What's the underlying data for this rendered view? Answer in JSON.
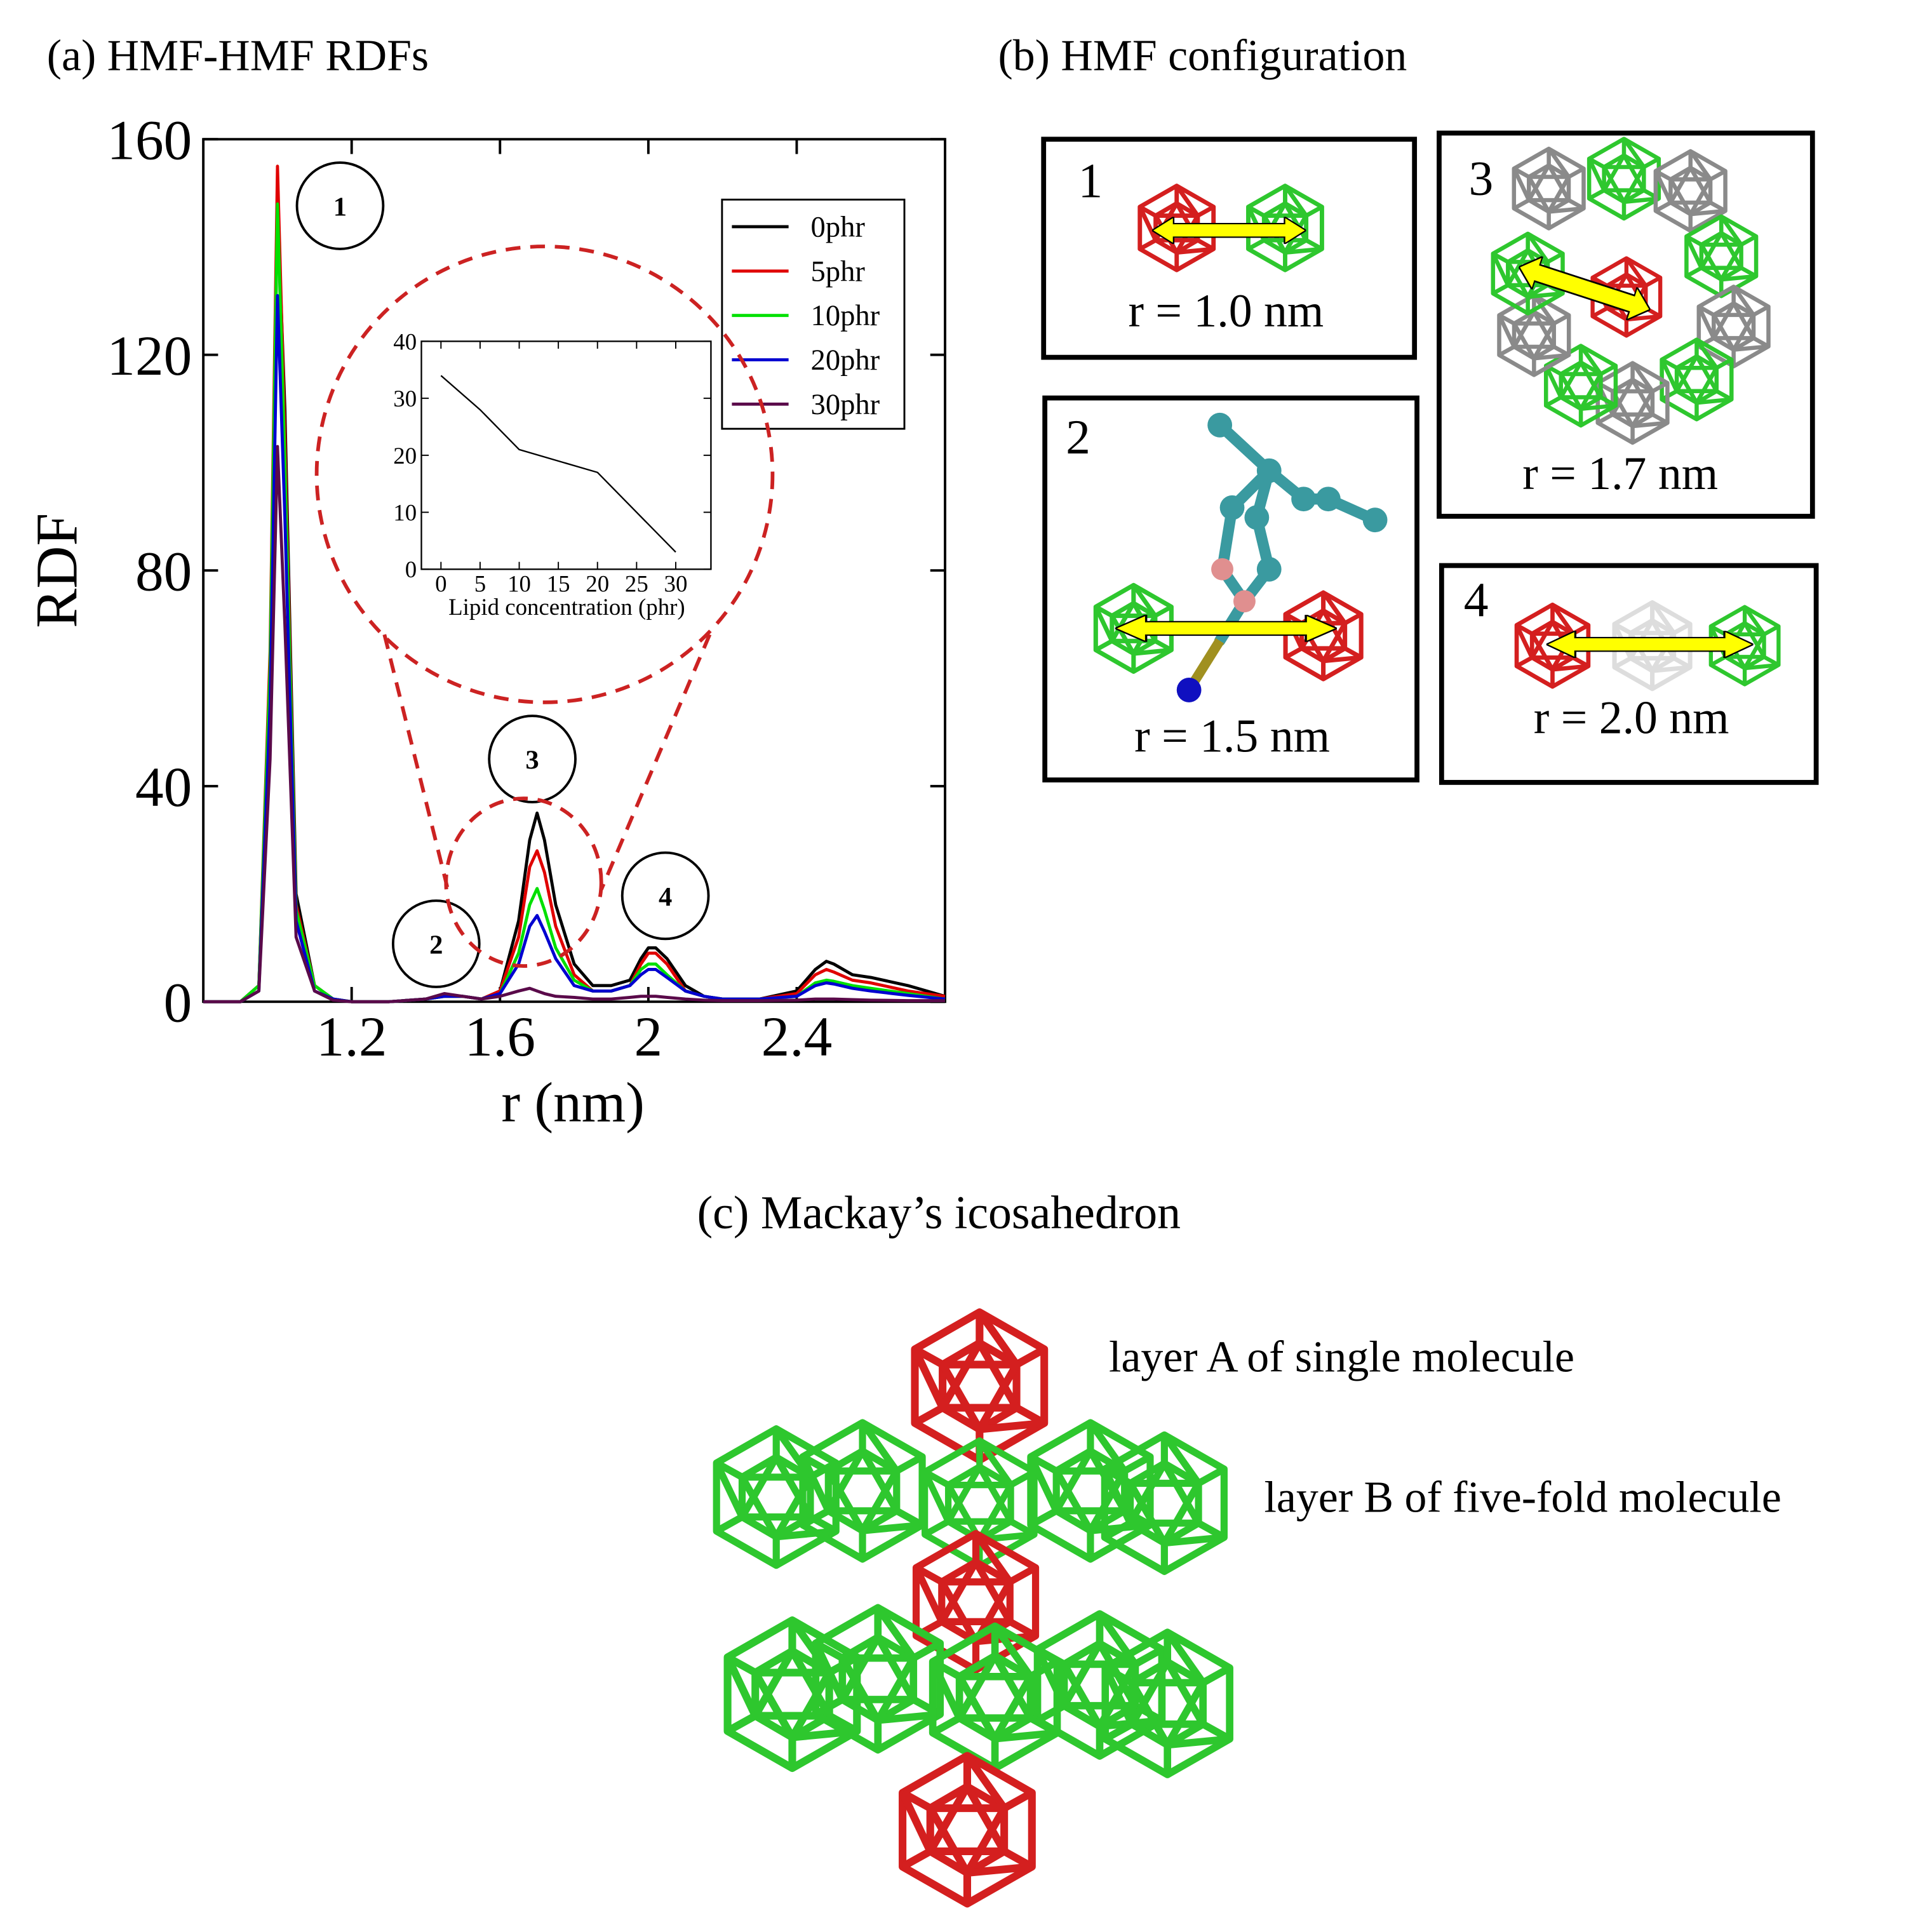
{
  "chart_data": [
    {
      "type": "line",
      "title": "(a) HMF-HMF RDFs",
      "xlabel": "r (nm)",
      "ylabel": "RDF",
      "xlim": [
        0.8,
        2.8
      ],
      "ylim": [
        0,
        160
      ],
      "xticks": [
        1.2,
        1.6,
        2,
        2.4
      ],
      "yticks": [
        0,
        40,
        80,
        120,
        160
      ],
      "x": [
        0.8,
        0.9,
        0.95,
        0.98,
        1.0,
        1.02,
        1.05,
        1.1,
        1.15,
        1.2,
        1.3,
        1.4,
        1.45,
        1.5,
        1.55,
        1.6,
        1.65,
        1.68,
        1.7,
        1.72,
        1.75,
        1.8,
        1.85,
        1.9,
        1.95,
        1.98,
        2.0,
        2.02,
        2.05,
        2.1,
        2.15,
        2.2,
        2.3,
        2.4,
        2.45,
        2.48,
        2.5,
        2.55,
        2.6,
        2.7,
        2.8
      ],
      "series": [
        {
          "name": "0phr",
          "color": "#000000",
          "values": [
            0,
            0,
            3,
            60,
            148,
            110,
            20,
            3,
            0.5,
            0,
            0,
            0.5,
            1,
            1,
            0.5,
            2,
            15,
            30,
            35,
            30,
            18,
            7,
            3,
            3,
            4,
            8,
            10,
            10,
            8,
            3,
            1,
            0.5,
            0.5,
            2,
            6,
            7.5,
            7,
            5,
            4.5,
            3,
            1
          ]
        },
        {
          "name": "5phr",
          "color": "#e00000",
          "values": [
            0,
            0,
            3,
            65,
            155,
            105,
            18,
            3,
            0.5,
            0,
            0,
            0.5,
            1,
            1,
            0.5,
            2,
            12,
            25,
            28,
            24,
            14,
            5,
            2,
            2,
            3,
            7,
            9,
            9,
            7,
            2,
            1,
            0.5,
            0.5,
            1.5,
            5,
            6,
            5.5,
            4,
            3.5,
            2,
            1
          ]
        },
        {
          "name": "10phr",
          "color": "#00e000",
          "values": [
            0,
            0,
            3,
            62,
            148,
            100,
            17,
            3,
            0.5,
            0,
            0,
            0.5,
            1,
            1,
            0.5,
            1.5,
            9,
            18,
            21,
            17,
            10,
            4,
            2,
            2,
            3,
            6,
            7,
            7,
            5,
            2,
            1,
            0.5,
            0.5,
            1,
            3.5,
            4,
            3.8,
            3,
            2.5,
            1.5,
            0.5
          ]
        },
        {
          "name": "20phr",
          "color": "#0000d0",
          "values": [
            0,
            0,
            2,
            55,
            131,
            90,
            15,
            2,
            0.5,
            0,
            0,
            0.5,
            1,
            1,
            0.5,
            1.5,
            7,
            14,
            16,
            13,
            8,
            3,
            2,
            2,
            3,
            5,
            6,
            6,
            4.5,
            2,
            1,
            0.5,
            0.5,
            1,
            3,
            3.5,
            3.3,
            2.5,
            2,
            1.2,
            0.5
          ]
        },
        {
          "name": "30phr",
          "color": "#5a0a4a",
          "values": [
            0,
            0,
            2,
            45,
            103,
            70,
            12,
            2,
            0.3,
            0,
            0,
            0.5,
            1.5,
            1,
            0.5,
            1,
            2,
            2.5,
            2,
            1.5,
            1,
            0.8,
            0.5,
            0.5,
            0.8,
            1,
            1,
            1,
            0.8,
            0.5,
            0.3,
            0.2,
            0.2,
            0.3,
            0.5,
            0.5,
            0.5,
            0.4,
            0.3,
            0.2,
            0.2
          ]
        }
      ],
      "annotations": [
        "1",
        "2",
        "3",
        "4"
      ]
    },
    {
      "type": "line",
      "xlabel": "Lipid concentration (phr)",
      "xlim": [
        -2.5,
        34.5
      ],
      "ylim": [
        0,
        40
      ],
      "xticks": [
        0,
        5,
        10,
        15,
        20,
        25,
        30
      ],
      "yticks": [
        0,
        10,
        20,
        30,
        40
      ],
      "x": [
        0,
        5,
        10,
        20,
        30
      ],
      "series": [
        {
          "color": "#000000",
          "values": [
            34,
            28,
            21,
            17,
            3
          ]
        }
      ]
    }
  ],
  "panel_b": {
    "title": "(b) HMF configuration",
    "boxes": [
      {
        "number": "1",
        "label": "r = 1.0 nm"
      },
      {
        "number": "2",
        "label": "r = 1.5 nm"
      },
      {
        "number": "3",
        "label": "r = 1.7 nm"
      },
      {
        "number": "4",
        "label": "r = 2.0 nm"
      }
    ]
  },
  "panel_c": {
    "title": "(c) Mackay’s icosahedron",
    "labels": [
      "layer A of single molecule",
      "layer B of five-fold molecule"
    ]
  }
}
